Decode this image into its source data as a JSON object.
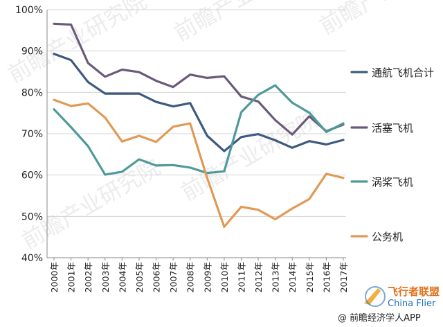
{
  "chart_data": {
    "type": "line",
    "categories": [
      "2000年",
      "2001年",
      "2002年",
      "2003年",
      "2004年",
      "2005年",
      "2006年",
      "2007年",
      "2008年",
      "2009年",
      "2010年",
      "2011年",
      "2012年",
      "2013年",
      "2014年",
      "2015年",
      "2016年",
      "2017年"
    ],
    "ylim": [
      40,
      100
    ],
    "yticks": [
      "40%",
      "50%",
      "60%",
      "70%",
      "80%",
      "90%",
      "100%"
    ],
    "grid": true,
    "legend_placement": "right",
    "series": [
      {
        "name": "通航飞机合计",
        "color": "#3c5a80",
        "values": [
          89.3,
          87.8,
          82.5,
          79.7,
          79.7,
          79.7,
          77.7,
          76.6,
          77.4,
          69.5,
          65.8,
          69.2,
          69.9,
          68.4,
          66.6,
          68.2,
          67.4,
          68.5
        ]
      },
      {
        "name": "活塞飞机",
        "color": "#6a5a7a",
        "values": [
          96.6,
          96.4,
          87.1,
          83.8,
          85.5,
          84.9,
          82.8,
          81.3,
          84.3,
          83.5,
          83.9,
          79.0,
          77.8,
          73.3,
          69.8,
          74.2,
          70.6,
          72.2
        ]
      },
      {
        "name": "涡桨飞机",
        "color": "#4e9a9a",
        "values": [
          75.9,
          71.6,
          67.0,
          60.1,
          60.8,
          63.8,
          62.3,
          62.4,
          61.8,
          60.5,
          60.9,
          75.2,
          79.4,
          81.7,
          77.5,
          75.1,
          70.4,
          72.5
        ]
      },
      {
        "name": "公务机",
        "color": "#e09a55",
        "values": [
          78.2,
          76.7,
          77.3,
          73.9,
          68.1,
          69.5,
          68.0,
          71.7,
          72.5,
          59.3,
          47.5,
          52.3,
          51.6,
          49.3,
          51.9,
          54.2,
          60.3,
          59.3
        ]
      }
    ]
  },
  "watermark": "前瞻产业研究院",
  "footer": "@ 前瞻经济学人APP",
  "badge": {
    "title": "飞行者联盟",
    "subtitle": "China Flier"
  }
}
